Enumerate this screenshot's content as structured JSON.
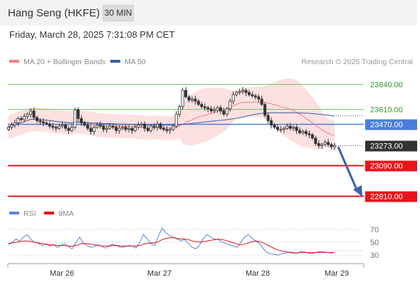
{
  "header": {
    "title": "Hang Seng (HKFE)",
    "timeframe": "30 MIN",
    "timestamp": "Friday, March 28, 2025 7:31:08 PM CET"
  },
  "legend": {
    "ma20": "MA 20 + Bollinger Bands",
    "ma50": "MA 50",
    "credit": "Research © 2025 Trading Central",
    "rsi": "RSI",
    "ma9": "9MA"
  },
  "colors": {
    "ma20": "#f08080",
    "band_fill": "#fde0e0",
    "ma50": "#3a5fa0",
    "green_line": "#7cc36a",
    "blue_line": "#4a7fd9",
    "red_line": "#e8141c",
    "current_label": "#333333",
    "arrow": "#3a62a8",
    "candle": "#333333",
    "rsi": "#5b84d6",
    "rsi_ma": "#e0141c"
  },
  "chart_data": {
    "type": "candlestick",
    "price_levels": [
      {
        "label": "23840.00",
        "value": 23840,
        "kind": "resistance",
        "color": "green"
      },
      {
        "label": "23610.00",
        "value": 23610,
        "kind": "resistance",
        "color": "green"
      },
      {
        "label": "23470.00",
        "value": 23470,
        "kind": "pivot",
        "color": "blue"
      },
      {
        "label": "23273.00",
        "value": 23273,
        "kind": "last",
        "color": "dark"
      },
      {
        "label": "23090.00",
        "value": 23090,
        "kind": "support",
        "color": "red"
      },
      {
        "label": "22810.00",
        "value": 22810,
        "kind": "target",
        "color": "red"
      }
    ],
    "x_labels": [
      "Mar 26",
      "Mar 27",
      "Mar 28",
      "Mar 29"
    ],
    "closes": [
      23440,
      23460,
      23480,
      23520,
      23510,
      23540,
      23560,
      23590,
      23530,
      23500,
      23490,
      23480,
      23470,
      23450,
      23440,
      23430,
      23450,
      23460,
      23430,
      23410,
      23440,
      23600,
      23520,
      23480,
      23460,
      23430,
      23400,
      23440,
      23460,
      23450,
      23420,
      23430,
      23450,
      23440,
      23410,
      23430,
      23440,
      23420,
      23430,
      23410,
      23440,
      23460,
      23470,
      23430,
      23410,
      23450,
      23440,
      23470,
      23430,
      23420,
      23410,
      23420,
      23450,
      23560,
      23630,
      23780,
      23720,
      23690,
      23700,
      23680,
      23650,
      23630,
      23620,
      23610,
      23590,
      23600,
      23620,
      23590,
      23560,
      23610,
      23680,
      23740,
      23760,
      23770,
      23780,
      23760,
      23740,
      23730,
      23720,
      23700,
      23650,
      23550,
      23500,
      23460,
      23440,
      23420,
      23420,
      23430,
      23450,
      23430,
      23440,
      23410,
      23390,
      23400,
      23380,
      23370,
      23340,
      23290,
      23270,
      23280,
      23300,
      23280,
      23260,
      23273
    ],
    "rsi": {
      "levels": [
        70,
        50,
        30
      ],
      "values": [
        46,
        50,
        55,
        52,
        58,
        62,
        54,
        50,
        48,
        45,
        47,
        44,
        46,
        42,
        45,
        48,
        43,
        40,
        50,
        58,
        48,
        45,
        42,
        44,
        46,
        43,
        41,
        45,
        47,
        44,
        42,
        43,
        45,
        44,
        41,
        50,
        62,
        55,
        48,
        45,
        60,
        72,
        65,
        60,
        58,
        55,
        52,
        54,
        48,
        42,
        40,
        46,
        56,
        62,
        58,
        55,
        54,
        50,
        48,
        46,
        44,
        42,
        50,
        58,
        62,
        56,
        52,
        48,
        40,
        34,
        32,
        31,
        30,
        32,
        33,
        35,
        34,
        33,
        36,
        35,
        33,
        32,
        34,
        36,
        35,
        34,
        33,
        34
      ],
      "ma9": [
        48,
        49,
        50,
        51,
        52,
        52,
        51,
        50,
        49,
        48,
        47,
        46,
        46,
        45,
        45,
        45,
        44,
        44,
        45,
        47,
        48,
        48,
        47,
        46,
        45,
        44,
        44,
        44,
        45,
        45,
        44,
        44,
        44,
        44,
        44,
        45,
        47,
        48,
        49,
        49,
        51,
        54,
        56,
        57,
        57,
        56,
        55,
        55,
        54,
        52,
        51,
        50,
        51,
        52,
        53,
        54,
        55,
        54,
        53,
        51,
        49,
        47,
        46,
        47,
        49,
        51,
        52,
        51,
        49,
        46,
        43,
        40,
        38,
        36,
        35,
        34,
        33,
        33,
        34,
        34,
        34,
        34,
        34,
        34,
        34,
        34,
        34,
        34
      ]
    }
  }
}
